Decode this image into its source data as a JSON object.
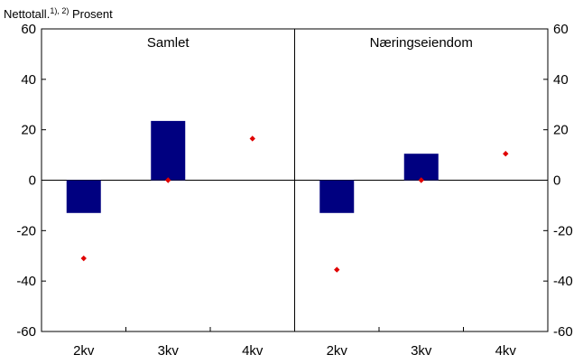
{
  "subtitle": {
    "text": "Nettotall.",
    "footnote_marks": "1), 2)",
    "unit": "Prosent"
  },
  "chart_data": {
    "type": "bar",
    "ylim": [
      -60,
      60
    ],
    "yticks": [
      60,
      40,
      20,
      0,
      -20,
      -40,
      -60
    ],
    "grid": false,
    "colors": {
      "bar": "#000080",
      "marker": "#e00000"
    },
    "panels": [
      {
        "title": "Samlet",
        "categories": [
          "2kv",
          "3kv",
          "4kv"
        ],
        "bars": [
          -13,
          23.5,
          null
        ],
        "markers": [
          -31,
          0,
          16.5
        ]
      },
      {
        "title": "Næringseiendom",
        "categories": [
          "2kv",
          "3kv",
          "4kv"
        ],
        "bars": [
          -13,
          10.5,
          null
        ],
        "markers": [
          -35.5,
          0,
          10.5
        ]
      }
    ]
  }
}
